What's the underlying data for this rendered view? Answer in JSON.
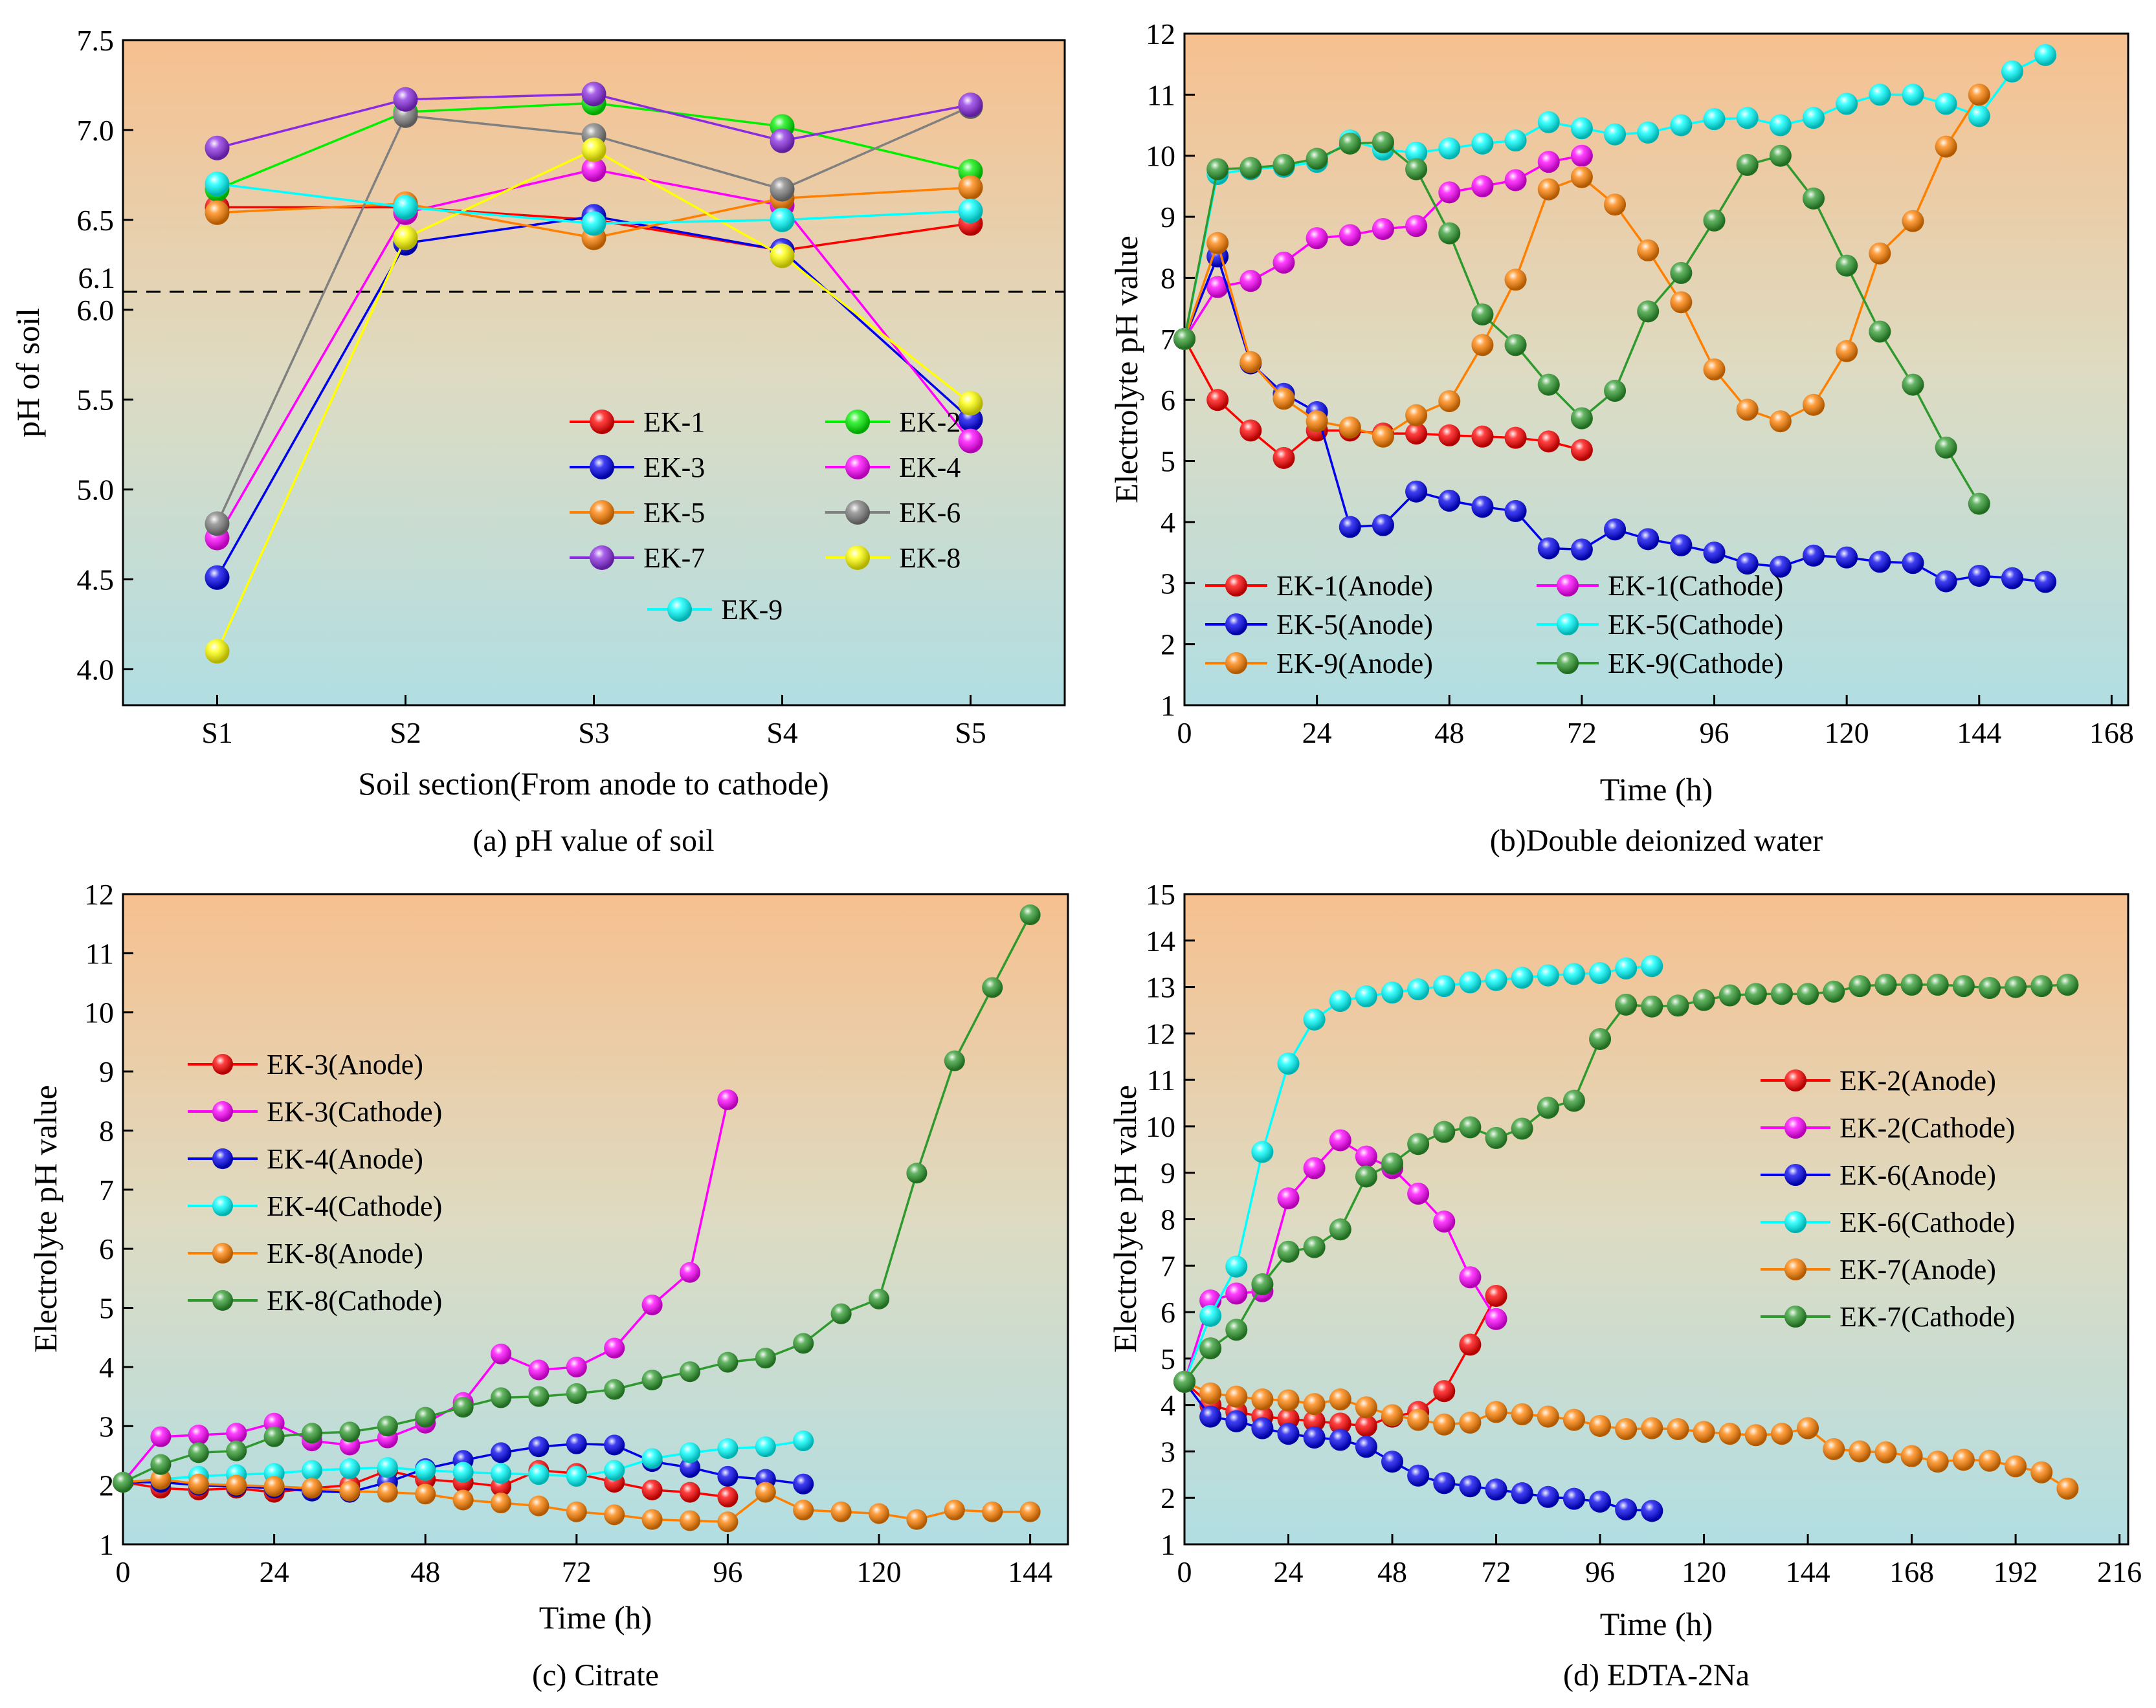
{
  "chart_data": [
    {
      "id": "a",
      "type": "line",
      "caption": "(a) pH value of soil",
      "xlabel": "Soil section(From anode to cathode)",
      "ylabel": "pH of soil",
      "categories": [
        "S1",
        "S2",
        "S3",
        "S4",
        "S5"
      ],
      "ylim": [
        3.8,
        7.5
      ],
      "yticks": [
        4.0,
        4.5,
        5.0,
        5.5,
        6.0,
        6.5,
        7.0,
        7.5
      ],
      "ytick_labels": [
        "4.0",
        "4.5",
        "5.0",
        "5.5",
        "6.0",
        "6.5",
        "7.0",
        "7.5"
      ],
      "reference_line": {
        "value": 6.1,
        "label": "6.1"
      },
      "series": [
        {
          "name": "EK-1",
          "color": "#ff0000",
          "values": [
            6.57,
            6.57,
            6.5,
            6.33,
            6.48
          ]
        },
        {
          "name": "EK-2",
          "color": "#00ee00",
          "values": [
            6.67,
            7.1,
            7.15,
            7.02,
            6.77
          ]
        },
        {
          "name": "EK-3",
          "color": "#0000ee",
          "values": [
            4.51,
            6.37,
            6.52,
            6.33,
            5.39
          ]
        },
        {
          "name": "EK-4",
          "color": "#ff00ff",
          "values": [
            4.73,
            6.54,
            6.78,
            6.58,
            5.27
          ]
        },
        {
          "name": "EK-5",
          "color": "#ff8000",
          "values": [
            6.54,
            6.59,
            6.4,
            6.62,
            6.68
          ]
        },
        {
          "name": "EK-6",
          "color": "#808080",
          "values": [
            4.81,
            7.08,
            6.97,
            6.67,
            7.13
          ]
        },
        {
          "name": "EK-7",
          "color": "#8a2be2",
          "values": [
            6.9,
            7.17,
            7.2,
            6.94,
            7.14
          ]
        },
        {
          "name": "EK-8",
          "color": "#ffff00",
          "values": [
            4.1,
            6.4,
            6.89,
            6.3,
            5.48
          ]
        },
        {
          "name": "EK-9",
          "color": "#00ffff",
          "values": [
            6.7,
            6.57,
            6.48,
            6.5,
            6.55
          ]
        }
      ]
    },
    {
      "id": "b",
      "type": "line",
      "caption": "(b)Double deionized water",
      "xlabel": "Time (h)",
      "ylabel": "Electrolyte pH value",
      "xlim": [
        0,
        171
      ],
      "xticks": [
        0,
        24,
        48,
        72,
        96,
        120,
        144,
        168
      ],
      "ylim": [
        1,
        12
      ],
      "yticks": [
        1,
        2,
        3,
        4,
        5,
        6,
        7,
        8,
        9,
        10,
        11,
        12
      ],
      "series": [
        {
          "name": "EK-1(Anode)",
          "color": "#ff0000",
          "x": [
            0,
            6,
            12,
            18,
            24,
            30,
            36,
            42,
            48,
            54,
            60,
            66,
            72
          ],
          "y": [
            7.0,
            6.0,
            5.5,
            5.05,
            5.5,
            5.5,
            5.45,
            5.45,
            5.42,
            5.4,
            5.38,
            5.32,
            5.18
          ]
        },
        {
          "name": "EK-1(Cathode)",
          "color": "#ff00ff",
          "x": [
            0,
            6,
            12,
            18,
            24,
            30,
            36,
            42,
            48,
            54,
            60,
            66,
            72
          ],
          "y": [
            7.0,
            7.85,
            7.95,
            8.25,
            8.65,
            8.7,
            8.8,
            8.85,
            9.4,
            9.5,
            9.6,
            9.9,
            10.0
          ]
        },
        {
          "name": "EK-5(Anode)",
          "color": "#0000ee",
          "x": [
            0,
            6,
            12,
            18,
            24,
            30,
            36,
            42,
            48,
            54,
            60,
            66,
            72,
            78,
            84,
            90,
            96,
            102,
            108,
            114,
            120,
            126,
            132,
            138,
            144,
            150,
            156
          ],
          "y": [
            7.0,
            8.35,
            6.6,
            6.1,
            5.8,
            3.92,
            3.95,
            4.5,
            4.35,
            4.25,
            4.18,
            3.57,
            3.55,
            3.88,
            3.72,
            3.62,
            3.5,
            3.32,
            3.27,
            3.45,
            3.42,
            3.35,
            3.33,
            3.03,
            3.12,
            3.08,
            3.02
          ]
        },
        {
          "name": "EK-5(Cathode)",
          "color": "#00ffff",
          "x": [
            0,
            6,
            12,
            18,
            24,
            30,
            36,
            42,
            48,
            54,
            60,
            66,
            72,
            78,
            84,
            90,
            96,
            102,
            108,
            114,
            120,
            126,
            132,
            138,
            144,
            150,
            156
          ],
          "y": [
            7.0,
            9.7,
            9.78,
            9.82,
            9.9,
            10.25,
            10.1,
            10.05,
            10.12,
            10.2,
            10.25,
            10.55,
            10.45,
            10.35,
            10.38,
            10.5,
            10.6,
            10.62,
            10.5,
            10.62,
            10.85,
            11.0,
            11.0,
            10.85,
            10.65,
            11.38,
            11.65
          ]
        },
        {
          "name": "EK-9(Anode)",
          "color": "#ff8000",
          "x": [
            0,
            6,
            12,
            18,
            24,
            30,
            36,
            42,
            48,
            54,
            60,
            66,
            72,
            78,
            84,
            90,
            96,
            102,
            108,
            114,
            120,
            126,
            132,
            138,
            144
          ],
          "y": [
            7.0,
            8.57,
            6.62,
            6.02,
            5.65,
            5.55,
            5.4,
            5.75,
            5.98,
            6.9,
            7.97,
            9.45,
            9.65,
            9.2,
            8.45,
            7.6,
            6.5,
            5.84,
            5.65,
            5.92,
            6.8,
            8.4,
            8.93,
            10.15,
            11.0
          ]
        },
        {
          "name": "EK-9(Cathode)",
          "color": "#2e9a2e",
          "x": [
            0,
            6,
            12,
            18,
            24,
            30,
            36,
            42,
            48,
            54,
            60,
            66,
            72,
            78,
            84,
            90,
            96,
            102,
            108,
            114,
            120,
            126,
            132,
            138,
            144
          ],
          "y": [
            7.0,
            9.78,
            9.8,
            9.85,
            9.95,
            10.2,
            10.22,
            9.78,
            8.73,
            7.4,
            6.9,
            6.25,
            5.7,
            6.15,
            7.45,
            8.08,
            8.94,
            9.85,
            10.0,
            9.3,
            8.2,
            7.12,
            6.25,
            5.22,
            4.3
          ]
        }
      ]
    },
    {
      "id": "c",
      "type": "line",
      "caption": "(c) Citrate",
      "xlabel": "Time (h)",
      "ylabel": "Electrolyte pH value",
      "xlim": [
        0,
        150
      ],
      "xticks": [
        0,
        24,
        48,
        72,
        96,
        120,
        144
      ],
      "ylim": [
        1,
        12
      ],
      "yticks": [
        1,
        2,
        3,
        4,
        5,
        6,
        7,
        8,
        9,
        10,
        11,
        12
      ],
      "series": [
        {
          "name": "EK-3(Anode)",
          "color": "#ff0000",
          "x": [
            0,
            6,
            12,
            18,
            24,
            30,
            36,
            42,
            48,
            54,
            60,
            66,
            72,
            78,
            84,
            90,
            96
          ],
          "y": [
            2.05,
            1.95,
            1.92,
            1.95,
            1.88,
            1.95,
            2.0,
            2.25,
            2.1,
            2.05,
            1.98,
            2.25,
            2.2,
            2.05,
            1.92,
            1.88,
            1.8
          ]
        },
        {
          "name": "EK-3(Cathode)",
          "color": "#ff00ff",
          "x": [
            0,
            6,
            12,
            18,
            24,
            30,
            36,
            42,
            48,
            54,
            60,
            66,
            72,
            78,
            84,
            90,
            96
          ],
          "y": [
            2.05,
            2.82,
            2.85,
            2.88,
            3.05,
            2.75,
            2.68,
            2.8,
            3.05,
            3.4,
            4.22,
            3.95,
            4.0,
            4.32,
            5.05,
            5.6,
            8.52
          ]
        },
        {
          "name": "EK-4(Anode)",
          "color": "#0000ee",
          "x": [
            0,
            6,
            12,
            18,
            24,
            30,
            36,
            42,
            48,
            54,
            60,
            66,
            72,
            78,
            84,
            90,
            96,
            102,
            108
          ],
          "y": [
            2.05,
            2.05,
            2.0,
            1.98,
            1.95,
            1.9,
            1.88,
            2.05,
            2.28,
            2.42,
            2.55,
            2.65,
            2.7,
            2.68,
            2.4,
            2.3,
            2.15,
            2.1,
            2.02
          ]
        },
        {
          "name": "EK-4(Cathode)",
          "color": "#00ffff",
          "x": [
            0,
            6,
            12,
            18,
            24,
            30,
            36,
            42,
            48,
            54,
            60,
            66,
            72,
            78,
            84,
            90,
            96,
            102,
            108
          ],
          "y": [
            2.05,
            2.1,
            2.15,
            2.18,
            2.2,
            2.25,
            2.28,
            2.3,
            2.25,
            2.22,
            2.2,
            2.18,
            2.15,
            2.25,
            2.45,
            2.55,
            2.62,
            2.65,
            2.75
          ]
        },
        {
          "name": "EK-8(Anode)",
          "color": "#ff8000",
          "x": [
            0,
            6,
            12,
            18,
            24,
            30,
            36,
            42,
            48,
            54,
            60,
            66,
            72,
            78,
            84,
            90,
            96,
            102,
            108,
            114,
            120,
            126,
            132,
            138,
            144
          ],
          "y": [
            2.05,
            2.1,
            2.02,
            2.0,
            1.98,
            1.95,
            1.9,
            1.88,
            1.85,
            1.75,
            1.7,
            1.65,
            1.55,
            1.5,
            1.42,
            1.4,
            1.38,
            1.88,
            1.58,
            1.55,
            1.52,
            1.42,
            1.58,
            1.55,
            1.55
          ]
        },
        {
          "name": "EK-8(Cathode)",
          "color": "#2e9a2e",
          "x": [
            0,
            6,
            12,
            18,
            24,
            30,
            36,
            42,
            48,
            54,
            60,
            66,
            72,
            78,
            84,
            90,
            96,
            102,
            108,
            114,
            120,
            126,
            132,
            138,
            144
          ],
          "y": [
            2.05,
            2.35,
            2.55,
            2.58,
            2.82,
            2.88,
            2.9,
            3.0,
            3.15,
            3.32,
            3.48,
            3.5,
            3.55,
            3.62,
            3.78,
            3.92,
            4.08,
            4.15,
            4.4,
            4.9,
            5.15,
            7.28,
            9.18,
            10.42,
            11.65
          ]
        }
      ]
    },
    {
      "id": "d",
      "type": "line",
      "caption": "(d) EDTA-2Na",
      "xlabel": "Time (h)",
      "ylabel": "Electrolyte pH value",
      "xlim": [
        0,
        218
      ],
      "xticks": [
        0,
        24,
        48,
        72,
        96,
        120,
        144,
        168,
        192,
        216
      ],
      "ylim": [
        1,
        15
      ],
      "yticks": [
        1,
        2,
        3,
        4,
        5,
        6,
        7,
        8,
        9,
        10,
        11,
        12,
        13,
        14,
        15
      ],
      "series": [
        {
          "name": "EK-2(Anode)",
          "color": "#ff0000",
          "x": [
            0,
            6,
            12,
            18,
            24,
            30,
            36,
            42,
            48,
            54,
            60,
            66,
            72
          ],
          "y": [
            4.5,
            4.0,
            3.85,
            3.75,
            3.7,
            3.65,
            3.6,
            3.55,
            3.75,
            3.85,
            4.3,
            5.3,
            6.35
          ]
        },
        {
          "name": "EK-2(Cathode)",
          "color": "#ff00ff",
          "x": [
            0,
            6,
            12,
            18,
            24,
            30,
            36,
            42,
            48,
            54,
            60,
            66,
            72
          ],
          "y": [
            4.5,
            6.25,
            6.4,
            6.45,
            8.45,
            9.1,
            9.7,
            9.35,
            9.1,
            8.55,
            7.95,
            6.75,
            5.85
          ]
        },
        {
          "name": "EK-6(Anode)",
          "color": "#0000ee",
          "x": [
            0,
            6,
            12,
            18,
            24,
            30,
            36,
            42,
            48,
            54,
            60,
            66,
            72,
            78,
            84,
            90,
            96,
            102,
            108
          ],
          "y": [
            4.5,
            3.75,
            3.65,
            3.5,
            3.38,
            3.3,
            3.25,
            3.1,
            2.78,
            2.48,
            2.32,
            2.25,
            2.18,
            2.1,
            2.02,
            1.98,
            1.92,
            1.75,
            1.72
          ]
        },
        {
          "name": "EK-6(Cathode)",
          "color": "#00ffff",
          "x": [
            0,
            6,
            12,
            18,
            24,
            30,
            36,
            42,
            48,
            54,
            60,
            66,
            72,
            78,
            84,
            90,
            96,
            102,
            108
          ],
          "y": [
            4.5,
            5.92,
            6.98,
            9.45,
            11.35,
            12.3,
            12.7,
            12.8,
            12.88,
            12.95,
            13.02,
            13.1,
            13.15,
            13.2,
            13.25,
            13.28,
            13.3,
            13.4,
            13.45
          ]
        },
        {
          "name": "EK-7(Anode)",
          "color": "#ff8000",
          "x": [
            0,
            6,
            12,
            18,
            24,
            30,
            36,
            42,
            48,
            54,
            60,
            66,
            72,
            78,
            84,
            90,
            96,
            102,
            108,
            114,
            120,
            126,
            132,
            138,
            144,
            150,
            156,
            162,
            168,
            174,
            180,
            186,
            192,
            198,
            204
          ],
          "y": [
            4.5,
            4.25,
            4.18,
            4.12,
            4.1,
            4.02,
            4.12,
            3.95,
            3.78,
            3.68,
            3.58,
            3.62,
            3.85,
            3.8,
            3.75,
            3.68,
            3.55,
            3.48,
            3.5,
            3.48,
            3.42,
            3.38,
            3.35,
            3.38,
            3.5,
            3.05,
            3.0,
            2.98,
            2.9,
            2.78,
            2.82,
            2.8,
            2.68,
            2.55,
            2.2
          ]
        },
        {
          "name": "EK-7(Cathode)",
          "color": "#2e9a2e",
          "x": [
            0,
            6,
            12,
            18,
            24,
            30,
            36,
            42,
            48,
            54,
            60,
            66,
            72,
            78,
            84,
            90,
            96,
            102,
            108,
            114,
            120,
            126,
            132,
            138,
            144,
            150,
            156,
            162,
            168,
            174,
            180,
            186,
            192,
            198,
            204
          ],
          "y": [
            4.5,
            5.22,
            5.62,
            6.6,
            7.3,
            7.4,
            7.78,
            8.92,
            9.2,
            9.62,
            9.88,
            9.98,
            9.75,
            9.95,
            10.4,
            10.55,
            11.88,
            12.62,
            12.58,
            12.6,
            12.72,
            12.82,
            12.85,
            12.85,
            12.85,
            12.9,
            13.02,
            13.05,
            13.05,
            13.05,
            13.02,
            12.98,
            13.0,
            13.02,
            13.05
          ]
        }
      ]
    }
  ]
}
